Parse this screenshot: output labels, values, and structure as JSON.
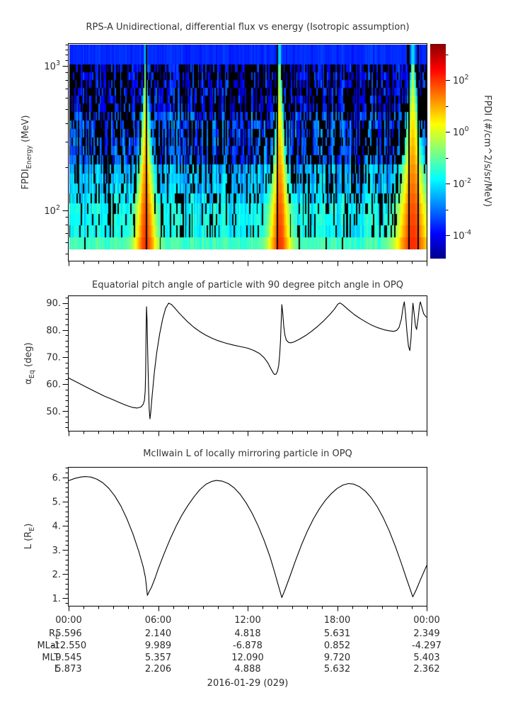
{
  "figure": {
    "date_label": "2016-01-29 (029)",
    "x_axis": {
      "range_hours": [
        0,
        24
      ],
      "tick_hours": [
        0,
        6,
        12,
        18,
        24
      ],
      "tick_labels": [
        "00:00",
        "06:00",
        "12:00",
        "18:00",
        "00:00"
      ],
      "minor_tick_step_hours": 1
    }
  },
  "chart_data": [
    {
      "type": "heatmap",
      "title": "RPS-A Unidirectional, differential flux vs energy (Isotropic assumption)",
      "ylabel": {
        "pre": "FPDI",
        "sub": "Energy",
        "post": " (MeV)"
      },
      "y_scale": "log",
      "ylim_mev": [
        45,
        1420
      ],
      "data_energy_range_mev": [
        54,
        1420
      ],
      "y_tick_exponents": [
        3,
        2
      ],
      "colormap": "jet",
      "colorbar": {
        "label": "FPDI (#/cm^2/s/sr/MeV)",
        "tick_exponents": [
          2,
          0,
          -2,
          -4
        ],
        "minor_tick_exponents": [
          3,
          1,
          -1,
          -3
        ],
        "clim_log10": [
          -4.9,
          3.4
        ]
      },
      "background_flux_log10": {
        "high_energy": -3.9,
        "mid_energy": -3.3,
        "low_energy": -1.8,
        "top_band": -3.6
      },
      "flux_enhancements": [
        {
          "center_hours": 5.15,
          "sigma_hours": 0.48,
          "peak_flux_log10": 2.0,
          "gap_line_hours": [
            5.15
          ]
        },
        {
          "center_hours": 14.15,
          "sigma_hours": 0.48,
          "peak_flux_log10": 2.0,
          "gap_line_hours": [
            14.02
          ]
        },
        {
          "center_hours": 23.1,
          "sigma_hours": 0.75,
          "peak_flux_log10": 2.1,
          "gap_line_hours": [
            22.82,
            23.42
          ]
        }
      ],
      "noise_seed": 29
    },
    {
      "type": "line",
      "title": "Equatorial pitch angle of particle with 90 degree pitch angle in OPQ",
      "ylabel": {
        "pre": "α",
        "sub": "Eq",
        "post": " (deg)"
      },
      "ylim": [
        42.8,
        92.5
      ],
      "y_ticks": [
        90,
        80,
        70,
        60,
        50
      ],
      "y_minor_step": 2,
      "points": [
        [
          0,
          62.3
        ],
        [
          0.6,
          60.6
        ],
        [
          1.2,
          58.9
        ],
        [
          1.8,
          57.2
        ],
        [
          2.4,
          55.6
        ],
        [
          3.0,
          54.2
        ],
        [
          3.5,
          53.0
        ],
        [
          3.9,
          52.1
        ],
        [
          4.3,
          51.4
        ],
        [
          4.6,
          51.2
        ],
        [
          4.85,
          51.6
        ],
        [
          5.0,
          52.6
        ],
        [
          5.08,
          54
        ],
        [
          5.13,
          57.5
        ],
        [
          5.16,
          64
        ],
        [
          5.18,
          73
        ],
        [
          5.2,
          82
        ],
        [
          5.22,
          88.6
        ],
        [
          5.26,
          83
        ],
        [
          5.3,
          72
        ],
        [
          5.35,
          60
        ],
        [
          5.4,
          51
        ],
        [
          5.45,
          47.2
        ],
        [
          5.5,
          49.5
        ],
        [
          5.6,
          56
        ],
        [
          5.75,
          64.5
        ],
        [
          5.9,
          71.5
        ],
        [
          6.1,
          78.5
        ],
        [
          6.3,
          84
        ],
        [
          6.5,
          88
        ],
        [
          6.7,
          89.9
        ],
        [
          6.9,
          89.4
        ],
        [
          7.1,
          88.2
        ],
        [
          7.4,
          86.3
        ],
        [
          7.7,
          84.6
        ],
        [
          8.0,
          82.9
        ],
        [
          8.4,
          81.0
        ],
        [
          8.8,
          79.4
        ],
        [
          9.2,
          78.1
        ],
        [
          9.6,
          77.0
        ],
        [
          10.0,
          76.1
        ],
        [
          10.5,
          75.2
        ],
        [
          11.0,
          74.5
        ],
        [
          11.5,
          73.9
        ],
        [
          12.0,
          73.3
        ],
        [
          12.4,
          72.5
        ],
        [
          12.8,
          71.3
        ],
        [
          13.1,
          69.8
        ],
        [
          13.35,
          67.9
        ],
        [
          13.55,
          65.8
        ],
        [
          13.7,
          64.3
        ],
        [
          13.8,
          63.6
        ],
        [
          13.9,
          63.7
        ],
        [
          14.0,
          64.8
        ],
        [
          14.08,
          67
        ],
        [
          14.15,
          71
        ],
        [
          14.2,
          76
        ],
        [
          14.25,
          83
        ],
        [
          14.29,
          89.4
        ],
        [
          14.35,
          86.5
        ],
        [
          14.42,
          81.5
        ],
        [
          14.5,
          78
        ],
        [
          14.6,
          76.2
        ],
        [
          14.75,
          75.4
        ],
        [
          14.9,
          75.3
        ],
        [
          15.1,
          75.6
        ],
        [
          15.5,
          76.7
        ],
        [
          15.9,
          78.0
        ],
        [
          16.3,
          79.6
        ],
        [
          16.7,
          81.4
        ],
        [
          17.1,
          83.4
        ],
        [
          17.5,
          85.7
        ],
        [
          17.8,
          87.6
        ],
        [
          18.05,
          89.6
        ],
        [
          18.2,
          90.0
        ],
        [
          18.4,
          89.2
        ],
        [
          18.75,
          87.5
        ],
        [
          19.15,
          85.7
        ],
        [
          19.55,
          84.2
        ],
        [
          19.95,
          82.9
        ],
        [
          20.35,
          81.7
        ],
        [
          20.75,
          80.8
        ],
        [
          21.15,
          80.1
        ],
        [
          21.5,
          79.7
        ],
        [
          21.8,
          79.5
        ],
        [
          22.0,
          79.9
        ],
        [
          22.15,
          81
        ],
        [
          22.3,
          84
        ],
        [
          22.42,
          88.5
        ],
        [
          22.5,
          90.4
        ],
        [
          22.58,
          86
        ],
        [
          22.68,
          79
        ],
        [
          22.78,
          74
        ],
        [
          22.87,
          72.4
        ],
        [
          22.95,
          77
        ],
        [
          23.02,
          85
        ],
        [
          23.08,
          89.9
        ],
        [
          23.15,
          86.5
        ],
        [
          23.25,
          81.5
        ],
        [
          23.32,
          80.2
        ],
        [
          23.42,
          84
        ],
        [
          23.52,
          89
        ],
        [
          23.58,
          90.4
        ],
        [
          23.68,
          88.3
        ],
        [
          23.8,
          86
        ],
        [
          23.95,
          84.9
        ],
        [
          24,
          84.8
        ]
      ]
    },
    {
      "type": "line",
      "title": "McIlwain L of locally mirroring particle in OPQ",
      "ylabel": {
        "pre": "L (R",
        "sub": "E",
        "post": ")"
      },
      "ylim": [
        0.69,
        6.41
      ],
      "y_ticks": [
        6,
        5,
        4,
        3,
        2,
        1
      ],
      "y_minor_step": 0.2,
      "points": [
        [
          0,
          5.87
        ],
        [
          0.4,
          5.96
        ],
        [
          0.8,
          6.02
        ],
        [
          1.1,
          6.04
        ],
        [
          1.5,
          6.02
        ],
        [
          1.9,
          5.93
        ],
        [
          2.3,
          5.78
        ],
        [
          2.7,
          5.55
        ],
        [
          3.1,
          5.23
        ],
        [
          3.5,
          4.82
        ],
        [
          3.9,
          4.3
        ],
        [
          4.3,
          3.68
        ],
        [
          4.7,
          2.95
        ],
        [
          5.0,
          2.3
        ],
        [
          5.15,
          1.85
        ],
        [
          5.28,
          1.12
        ],
        [
          5.4,
          1.28
        ],
        [
          5.55,
          1.45
        ],
        [
          5.8,
          1.85
        ],
        [
          6.0,
          2.21
        ],
        [
          6.4,
          2.85
        ],
        [
          6.8,
          3.45
        ],
        [
          7.2,
          3.98
        ],
        [
          7.6,
          4.45
        ],
        [
          8.0,
          4.85
        ],
        [
          8.4,
          5.2
        ],
        [
          8.8,
          5.5
        ],
        [
          9.2,
          5.72
        ],
        [
          9.6,
          5.84
        ],
        [
          9.9,
          5.88
        ],
        [
          10.3,
          5.85
        ],
        [
          10.7,
          5.75
        ],
        [
          11.1,
          5.57
        ],
        [
          11.5,
          5.3
        ],
        [
          11.9,
          4.95
        ],
        [
          12.3,
          4.52
        ],
        [
          12.7,
          4.0
        ],
        [
          13.1,
          3.4
        ],
        [
          13.5,
          2.72
        ],
        [
          13.8,
          2.1
        ],
        [
          14.05,
          1.55
        ],
        [
          14.29,
          1.03
        ],
        [
          14.5,
          1.35
        ],
        [
          14.8,
          1.85
        ],
        [
          15.2,
          2.55
        ],
        [
          15.6,
          3.2
        ],
        [
          16.0,
          3.78
        ],
        [
          16.4,
          4.28
        ],
        [
          16.8,
          4.7
        ],
        [
          17.2,
          5.05
        ],
        [
          17.6,
          5.33
        ],
        [
          18.0,
          5.55
        ],
        [
          18.4,
          5.69
        ],
        [
          18.75,
          5.75
        ],
        [
          19.1,
          5.73
        ],
        [
          19.5,
          5.62
        ],
        [
          19.9,
          5.43
        ],
        [
          20.3,
          5.15
        ],
        [
          20.7,
          4.78
        ],
        [
          21.1,
          4.32
        ],
        [
          21.5,
          3.78
        ],
        [
          21.9,
          3.15
        ],
        [
          22.3,
          2.45
        ],
        [
          22.6,
          1.9
        ],
        [
          22.85,
          1.45
        ],
        [
          23.07,
          1.06
        ],
        [
          23.3,
          1.35
        ],
        [
          23.6,
          1.8
        ],
        [
          24.0,
          2.36
        ]
      ]
    }
  ],
  "ephemeris": {
    "rows": [
      {
        "label": "R",
        "label_sub": "E",
        "values": [
          "5.596",
          "2.140",
          "4.818",
          "5.631",
          "2.349"
        ]
      },
      {
        "label": "MLat",
        "label_sub": "",
        "values": [
          "-12.550",
          "9.989",
          "-6.878",
          "0.852",
          "-4.297"
        ]
      },
      {
        "label": "MLT",
        "label_sub": "",
        "values": [
          "9.545",
          "5.357",
          "12.090",
          "9.720",
          "5.403"
        ]
      },
      {
        "label": "L",
        "label_sub": "",
        "values": [
          "5.873",
          "2.206",
          "4.888",
          "5.632",
          "2.362"
        ]
      }
    ]
  }
}
